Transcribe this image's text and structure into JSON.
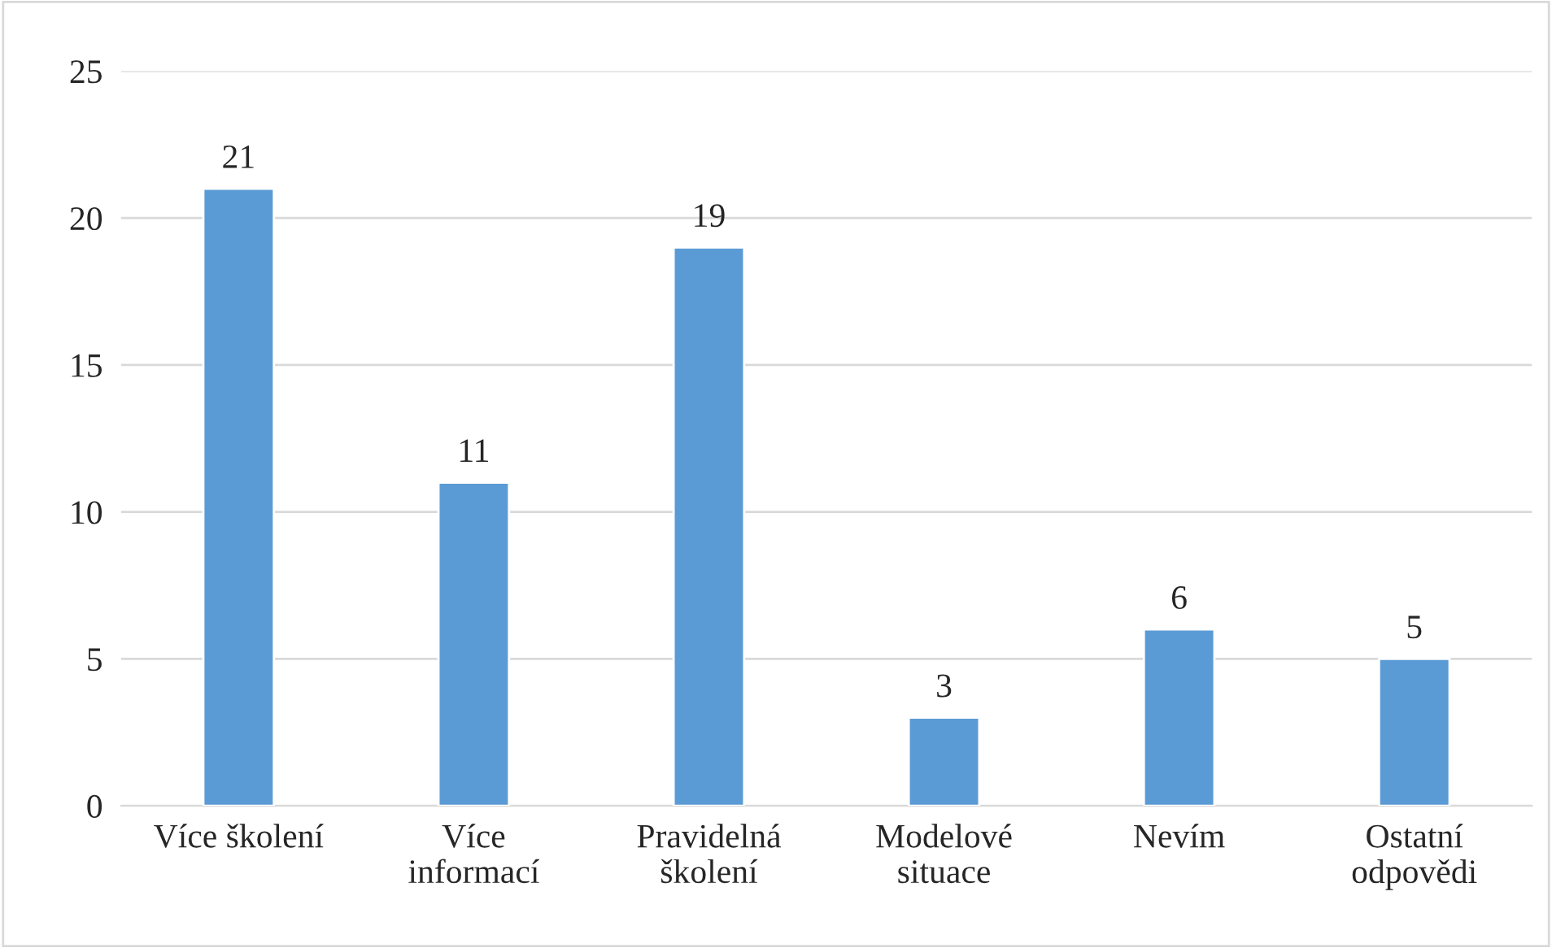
{
  "chart_data": {
    "type": "bar",
    "categories": [
      "Více školení",
      "Více\ninformací",
      "Pravidelná\nškolení",
      "Modelové\nsituace",
      "Nevím",
      "Ostatní\nodpovědi"
    ],
    "values": [
      21,
      11,
      19,
      3,
      6,
      5
    ],
    "color": "#5b9bd5",
    "ylim": [
      0,
      25
    ],
    "yticks": [
      0,
      5,
      10,
      15,
      20,
      25
    ],
    "grid": "y",
    "data_labels": true
  }
}
